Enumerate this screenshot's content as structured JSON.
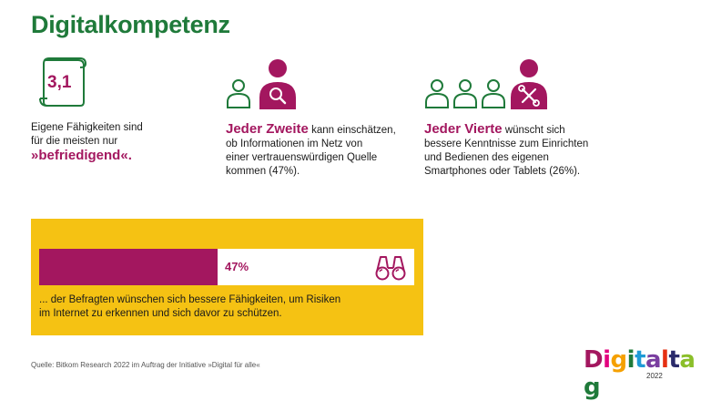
{
  "title": "Digitalkompetenz",
  "stat1": {
    "number": "3,1",
    "line1": "Eigene Fähigkeiten sind",
    "line2": "für die meisten nur",
    "highlight": "»befriedigend«."
  },
  "stat2": {
    "highlight": "Jeder Zweite",
    "line1_rest": " kann einschätzen,",
    "line2": "ob Informationen im Netz von",
    "line3": "einer vertrauenswürdigen Quelle",
    "line4": "kommen (47%)."
  },
  "stat3": {
    "highlight": "Jeder Vierte",
    "line1_rest": " wünscht sich",
    "line2": "bessere Kenntnisse zum Einrichten",
    "line3": "und Bedienen des eigenen",
    "line4": "Smartphones oder Tablets (26%)."
  },
  "bar": {
    "value_label": "47%",
    "fraction": 0.47,
    "text_line1": "... der Befragten wünschen sich bessere Fähigkeiten, um Risiken",
    "text_line2": "im Internet zu erkennen und sich davor zu schützen."
  },
  "source": "Quelle: Bitkom Research 2022 im Auftrag der Initiative »Digital für alle«",
  "logo": {
    "letters": [
      "D",
      "i",
      "g",
      "i",
      "t",
      "a",
      "l",
      "t",
      "a",
      "g"
    ],
    "colors": [
      "#a3175f",
      "#e3007e",
      "#f5a000",
      "#1f7a3a",
      "#1f9ad6",
      "#7a3ea0",
      "#e53012",
      "#2b2b6b",
      "#8bbf2a",
      "#1f7a3a"
    ],
    "year": "2022"
  },
  "colors": {
    "green": "#1f7a3a",
    "magenta": "#a3175f",
    "yellow": "#f5c213"
  },
  "icons": [
    "scroll-icon",
    "person-outline-icon",
    "person-magnifier-icon",
    "person-tools-icon",
    "binoculars-icon"
  ]
}
